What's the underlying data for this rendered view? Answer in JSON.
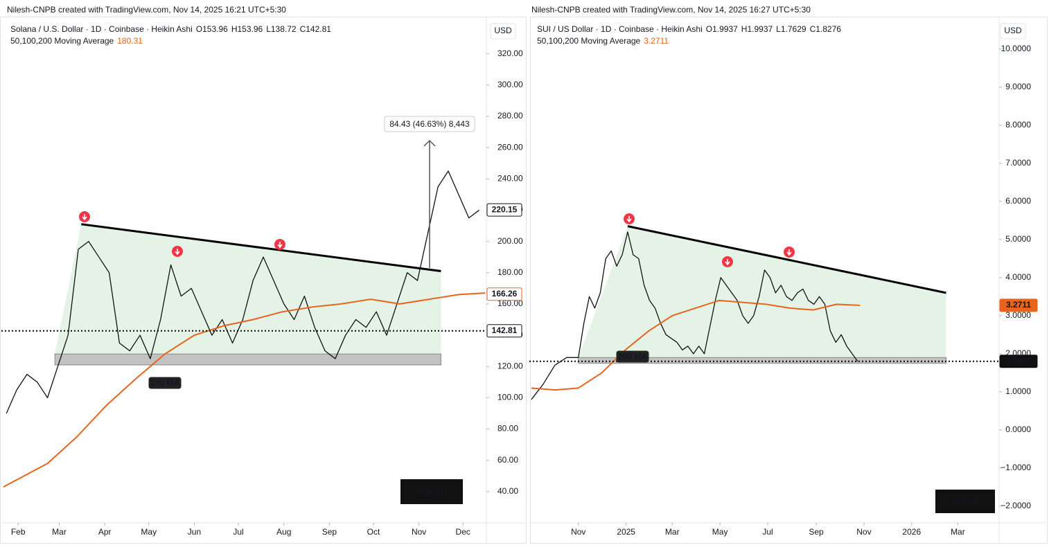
{
  "chart_data": [
    {
      "type": "line",
      "header": {
        "credit": "Nilesh-CNPB created with TradingView.com, Nov 14, 2025 16:21 UTC+5:30",
        "symbol": "Solana / U.S. Dollar · 1D · Coinbase · Heikin Ashi",
        "ohlc": [
          "O153.96",
          "H153.96",
          "L138.72",
          "C142.81"
        ],
        "ma_name": "50,100,200 Moving Average",
        "ma_value": 180.31
      },
      "currency": "USD",
      "watermark": "SOL-1D",
      "xlim": [
        -10,
        318
      ],
      "xticks": [
        {
          "value": 0,
          "label": "Feb"
        },
        {
          "value": 28,
          "label": "Mar"
        },
        {
          "value": 59,
          "label": "Apr"
        },
        {
          "value": 89,
          "label": "May"
        },
        {
          "value": 120,
          "label": "Jun"
        },
        {
          "value": 150,
          "label": "Jul"
        },
        {
          "value": 181,
          "label": "Aug"
        },
        {
          "value": 212,
          "label": "Sep"
        },
        {
          "value": 242,
          "label": "Oct"
        },
        {
          "value": 273,
          "label": "Nov"
        },
        {
          "value": 303,
          "label": "Dec"
        }
      ],
      "ylim": [
        20,
        342
      ],
      "yticks": [
        {
          "value": 40,
          "label": "40.00"
        },
        {
          "value": 60,
          "label": "60.00"
        },
        {
          "value": 80,
          "label": "80.00"
        },
        {
          "value": 100,
          "label": "100.00"
        },
        {
          "value": 120,
          "label": "120.00"
        },
        {
          "value": 140,
          "label": "140.00"
        },
        {
          "value": 160,
          "label": "160.00"
        },
        {
          "value": 180,
          "label": "180.00"
        },
        {
          "value": 200,
          "label": "200.00"
        },
        {
          "value": 220,
          "label": "220.00"
        },
        {
          "value": 240,
          "label": "240.00"
        },
        {
          "value": 260,
          "label": "260.00"
        },
        {
          "value": 280,
          "label": "280.00"
        },
        {
          "value": 300,
          "label": "300.00"
        },
        {
          "value": 320,
          "label": "320.00"
        }
      ],
      "grid": false,
      "series": [
        {
          "color": "#111111",
          "x": [
            -8,
            -1,
            6,
            13,
            20,
            27,
            34,
            41,
            48,
            55,
            62,
            69,
            76,
            83,
            90,
            97,
            104,
            111,
            118,
            125,
            132,
            139,
            146,
            153,
            160,
            167,
            174,
            181,
            188,
            195,
            202,
            209,
            216,
            223,
            230,
            237,
            244,
            251,
            258,
            265,
            272,
            279,
            286,
            293,
            300,
            307,
            314
          ],
          "values": [
            90,
            105,
            115,
            110,
            100,
            120,
            140,
            195,
            200,
            190,
            180,
            135,
            130,
            140,
            125,
            150,
            185,
            165,
            170,
            155,
            140,
            150,
            135,
            150,
            175,
            190,
            175,
            160,
            150,
            165,
            145,
            130,
            125,
            140,
            150,
            145,
            155,
            140,
            160,
            180,
            175,
            205,
            235,
            245,
            230,
            215,
            220
          ]
        },
        {
          "name": "200 MA",
          "color": "#e8641b",
          "x": [
            -10,
            20,
            40,
            60,
            80,
            100,
            120,
            140,
            160,
            180,
            200,
            220,
            240,
            260,
            280,
            300,
            318
          ],
          "values": [
            43,
            58,
            75,
            95,
            112,
            128,
            140,
            146,
            150,
            155,
            158,
            160,
            163,
            160,
            163,
            166,
            167
          ]
        }
      ],
      "trendline": {
        "x": [
          43,
          288
        ],
        "values": [
          211,
          181
        ]
      },
      "support_zone": {
        "x": [
          25,
          288
        ],
        "values": [
          121,
          128
        ]
      },
      "current_price": 142.81,
      "price_labels": [
        {
          "value": 220.15,
          "color": "#111111",
          "filled": false
        },
        {
          "value": 166.26,
          "color": "#e8641b",
          "filled": false
        },
        {
          "value": 142.81,
          "color": "#111111",
          "filled": false
        }
      ],
      "annotations": [
        "84.43 (46.63%) 8,443",
        "200 MA"
      ]
    },
    {
      "type": "line",
      "header": {
        "credit": "Nilesh-CNPB created with TradingView.com, Nov 14, 2025 16:27 UTC+5:30",
        "symbol": "SUI / US Dollar · 1D · Coinbase · Heikin Ashi",
        "ohlc": [
          "O1.9937",
          "H1.9937",
          "L1.7629",
          "C1.8276"
        ],
        "ma_name": "50,100,200 Moving Average",
        "ma_value": 3.2711
      },
      "currency": "USD",
      "watermark": "SUI-1D",
      "xlim": [
        -60,
        536
      ],
      "xticks": [
        {
          "value": 0,
          "label": "Nov"
        },
        {
          "value": 61,
          "label": "2025"
        },
        {
          "value": 120,
          "label": "Mar"
        },
        {
          "value": 181,
          "label": "May"
        },
        {
          "value": 242,
          "label": "Jul"
        },
        {
          "value": 304,
          "label": "Sep"
        },
        {
          "value": 365,
          "label": "Nov"
        },
        {
          "value": 426,
          "label": "2026"
        },
        {
          "value": 485,
          "label": "Mar"
        }
      ],
      "ylim": [
        -2.44,
        10.78
      ],
      "yticks": [
        {
          "value": -2,
          "label": "−2.0000"
        },
        {
          "value": -1,
          "label": "−1.0000"
        },
        {
          "value": 0,
          "label": "0.0000"
        },
        {
          "value": 1,
          "label": "1.0000"
        },
        {
          "value": 2,
          "label": "2.0000"
        },
        {
          "value": 3,
          "label": "3.0000"
        },
        {
          "value": 4,
          "label": "4.0000"
        },
        {
          "value": 5,
          "label": "5.0000"
        },
        {
          "value": 6,
          "label": "6.0000"
        },
        {
          "value": 7,
          "label": "7.0000"
        },
        {
          "value": 8,
          "label": "8.0000"
        },
        {
          "value": 9,
          "label": "9.0000"
        },
        {
          "value": 10,
          "label": "10.0000"
        }
      ],
      "grid": false,
      "series": [
        {
          "color": "#111111",
          "x": [
            -60,
            -45,
            -30,
            -15,
            0,
            7,
            14,
            21,
            28,
            35,
            42,
            49,
            56,
            63,
            70,
            77,
            84,
            91,
            98,
            105,
            112,
            119,
            126,
            133,
            140,
            147,
            154,
            161,
            168,
            175,
            182,
            189,
            196,
            203,
            210,
            217,
            224,
            231,
            238,
            245,
            252,
            259,
            266,
            273,
            280,
            287,
            294,
            301,
            308,
            315,
            322,
            329,
            336,
            343,
            350,
            357
          ],
          "values": [
            0.8,
            1.2,
            1.7,
            1.9,
            1.9,
            2.8,
            3.5,
            3.2,
            3.6,
            4.5,
            4.7,
            4.3,
            4.6,
            5.2,
            4.6,
            4.5,
            3.8,
            3.4,
            3.2,
            2.8,
            2.5,
            2.4,
            2.3,
            2.1,
            2.2,
            2.0,
            2.2,
            2.0,
            2.7,
            3.4,
            4.0,
            3.8,
            3.6,
            3.4,
            3.0,
            2.8,
            3.0,
            3.5,
            4.2,
            4.0,
            3.6,
            3.8,
            3.5,
            3.4,
            3.6,
            3.7,
            3.4,
            3.3,
            3.5,
            3.3,
            2.6,
            2.3,
            2.5,
            2.2,
            2.0,
            1.8
          ]
        },
        {
          "name": "200 MA",
          "color": "#e8641b",
          "x": [
            -60,
            -30,
            0,
            30,
            60,
            90,
            120,
            150,
            180,
            210,
            240,
            270,
            300,
            330,
            360
          ],
          "values": [
            1.1,
            1.05,
            1.1,
            1.5,
            2.1,
            2.6,
            3.0,
            3.2,
            3.4,
            3.35,
            3.3,
            3.2,
            3.15,
            3.3,
            3.27
          ]
        }
      ],
      "trendline": {
        "x": [
          63,
          470
        ],
        "values": [
          5.35,
          3.6
        ]
      },
      "support_zone": {
        "x": [
          0,
          470
        ],
        "values": [
          1.75,
          1.9
        ]
      },
      "current_price": 1.8017,
      "price_labels": [
        {
          "value": 3.2711,
          "color": "#e8641b",
          "filled": true
        },
        {
          "value": 1.8017,
          "color": "#111111",
          "filled": true
        }
      ],
      "annotations": [
        "200 MA"
      ]
    }
  ]
}
